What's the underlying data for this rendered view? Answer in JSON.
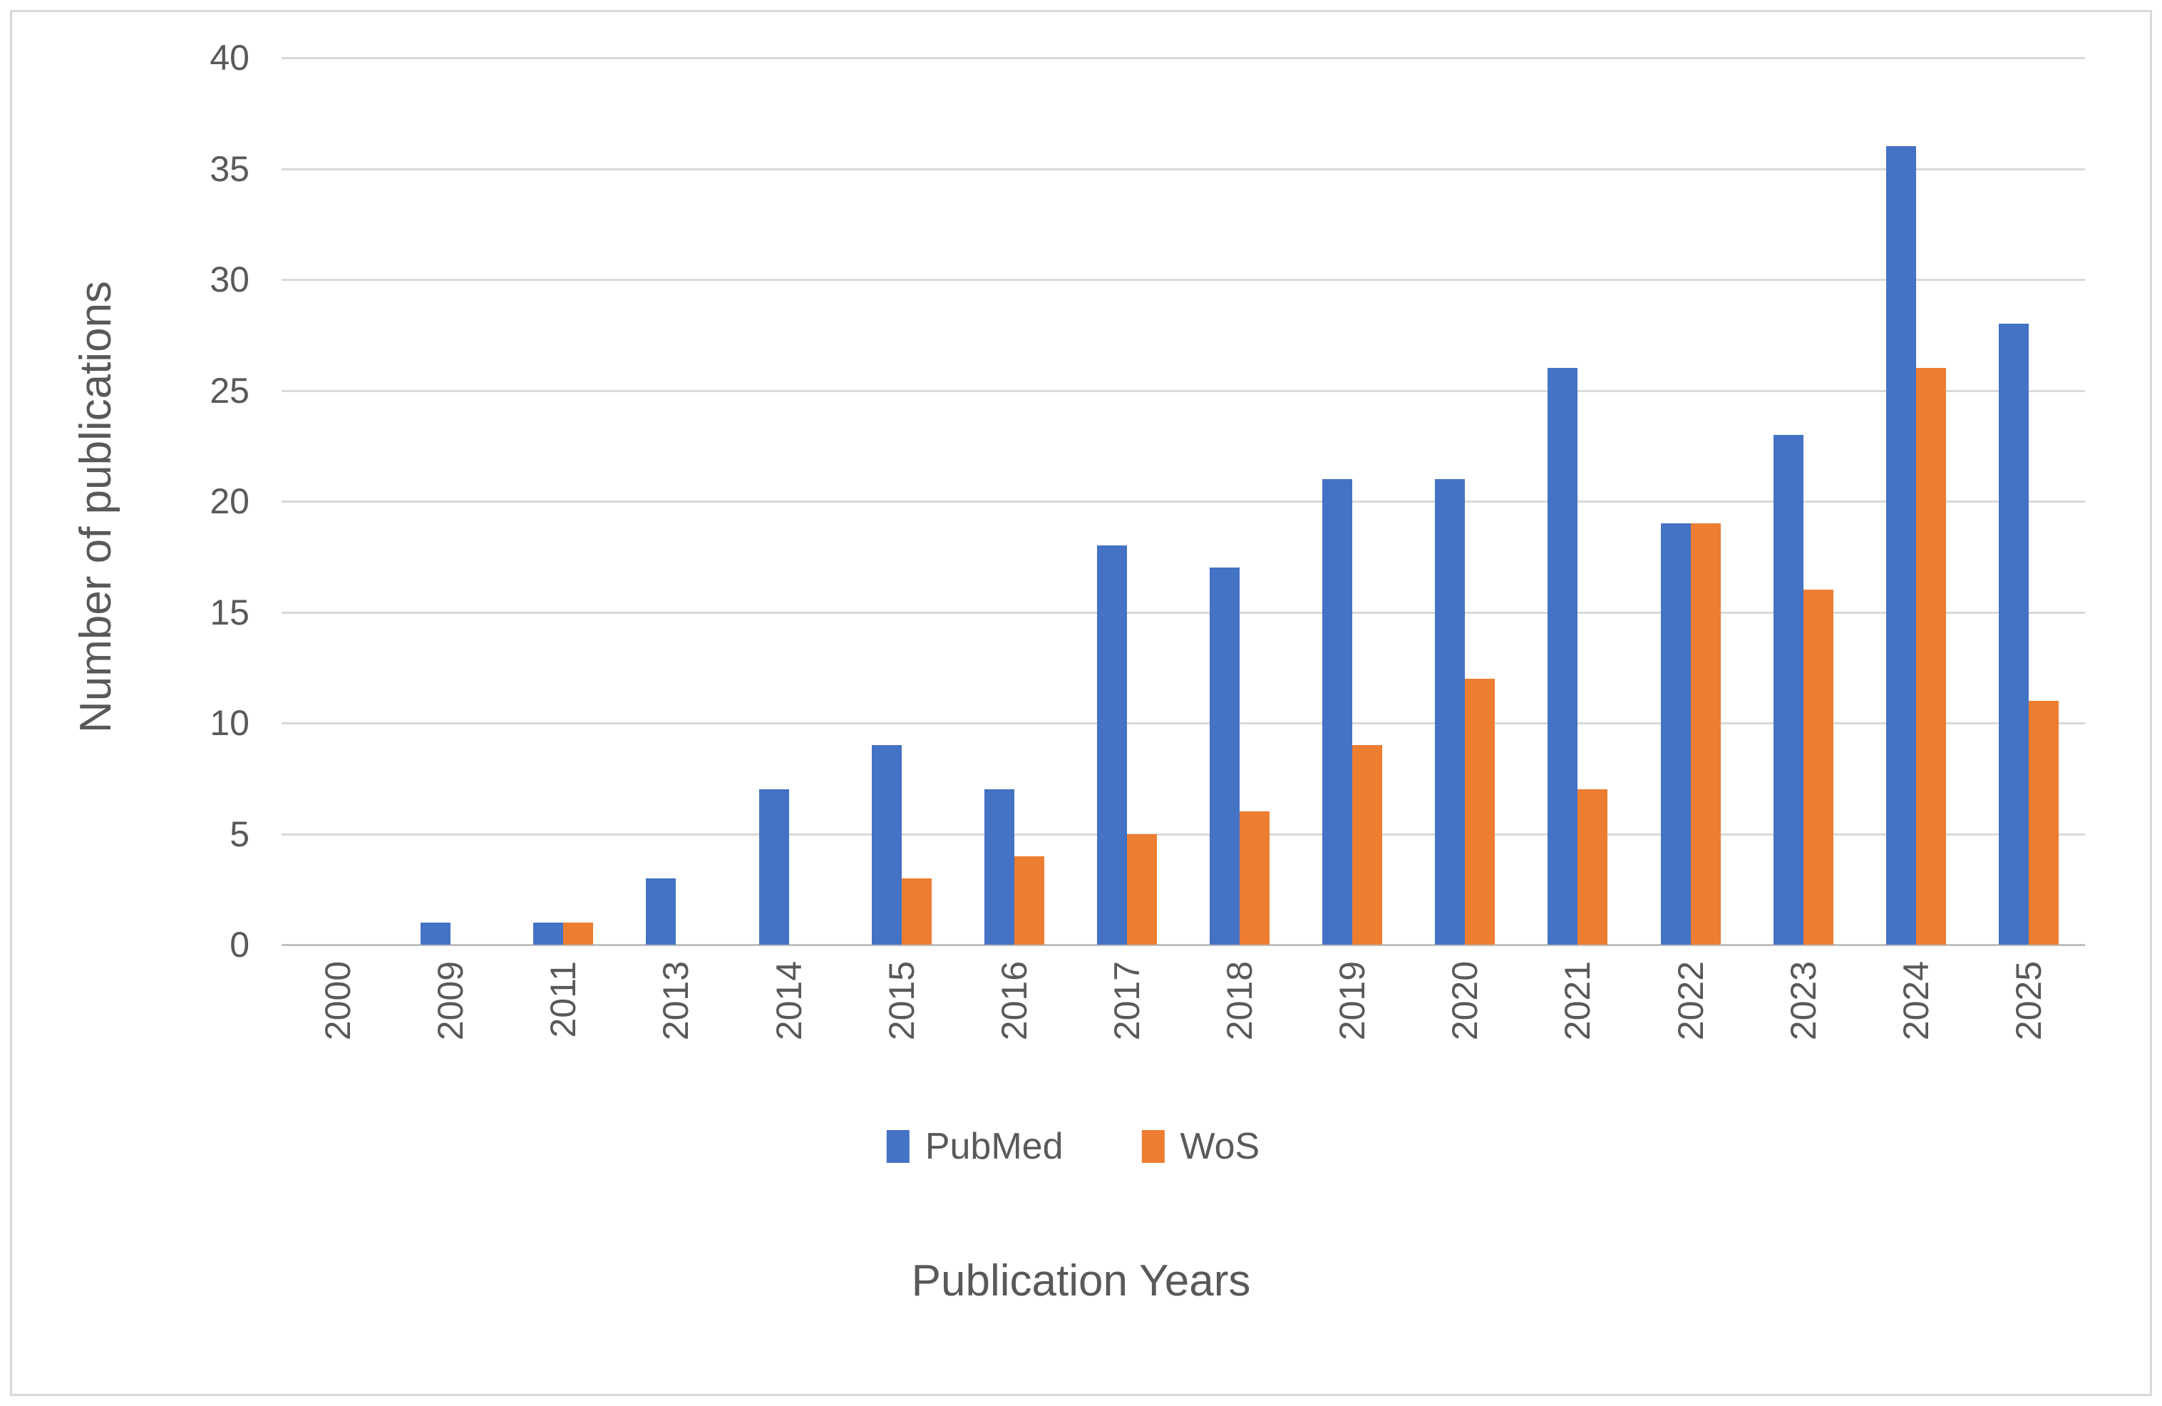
{
  "figure": {
    "background_color": "#ffffff",
    "frame_border_color": "#d9d9d9",
    "gridline_color": "#d9d9d9",
    "axis_line_color": "#bfbfbf",
    "text_color": "#595959"
  },
  "chart_data": {
    "type": "bar",
    "title": "",
    "xlabel": "Publication Years",
    "ylabel": "Number of publications",
    "categories": [
      "2000",
      "2009",
      "2011",
      "2013",
      "2014",
      "2015",
      "2016",
      "2017",
      "2018",
      "2019",
      "2020",
      "2021",
      "2022",
      "2023",
      "2024",
      "2025"
    ],
    "series": [
      {
        "name": "PubMed",
        "color": "#4472C4",
        "values": [
          0,
          1,
          1,
          3,
          7,
          9,
          7,
          18,
          17,
          21,
          21,
          26,
          19,
          23,
          36,
          28
        ]
      },
      {
        "name": "WoS",
        "color": "#ED7D31",
        "values": [
          0,
          0,
          1,
          0,
          0,
          3,
          4,
          5,
          6,
          9,
          12,
          7,
          19,
          16,
          26,
          11
        ]
      }
    ],
    "ylim": [
      0,
      40
    ],
    "ytick_step": 5,
    "y_ticks": [
      "0",
      "5",
      "10",
      "15",
      "20",
      "25",
      "30",
      "35",
      "40"
    ],
    "grid": true,
    "legend_position": "bottom"
  }
}
